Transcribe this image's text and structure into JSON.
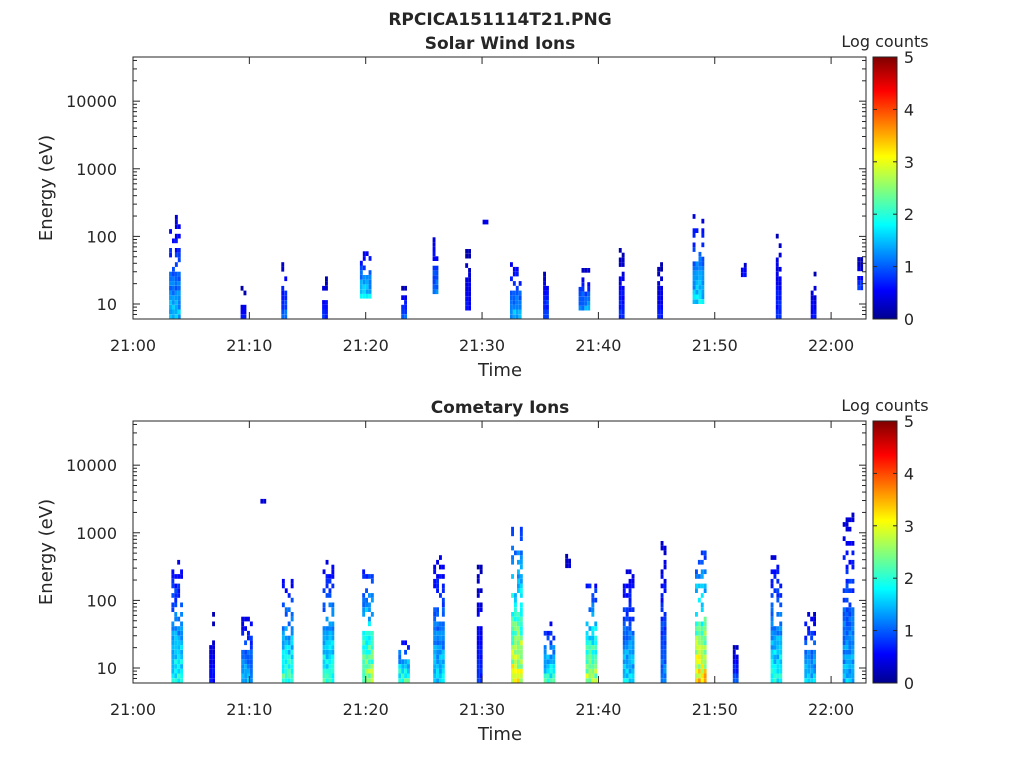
{
  "figure": {
    "title": "RPCICA151114T21.PNG"
  },
  "chart_data": [
    {
      "type": "heatmap",
      "title": "Solar Wind Ions",
      "xlabel": "Time",
      "ylabel": "Energy (eV)",
      "x_ticks": [
        "21:00",
        "21:10",
        "21:20",
        "21:30",
        "21:40",
        "21:50",
        "22:00"
      ],
      "x_range_minutes": [
        0,
        63
      ],
      "y_scale": "log",
      "y_ticks": [
        10,
        100,
        1000,
        10000
      ],
      "y_tick_labels": [
        "10",
        "100",
        "1000",
        "10000"
      ],
      "y_range": [
        6,
        45000
      ],
      "colorbar": {
        "label": "Log counts",
        "range": [
          0,
          5
        ],
        "ticks": [
          "0",
          "1",
          "2",
          "3",
          "4",
          "5"
        ],
        "colormap": "jet"
      },
      "events": [
        {
          "t": 3.6,
          "emin": 6,
          "emax": 180,
          "peak": 1.8
        },
        {
          "t": 9.5,
          "emin": 6,
          "emax": 16,
          "peak": 0.8
        },
        {
          "t": 13.0,
          "emin": 6,
          "emax": 45,
          "peak": 1.3
        },
        {
          "t": 16.5,
          "emin": 6,
          "emax": 22,
          "peak": 1.0
        },
        {
          "t": 20.0,
          "emin": 12,
          "emax": 60,
          "peak": 2.0
        },
        {
          "t": 23.3,
          "emin": 6,
          "emax": 16,
          "peak": 1.2
        },
        {
          "t": 26.0,
          "emin": 14,
          "emax": 90,
          "peak": 1.5
        },
        {
          "t": 28.8,
          "emin": 8,
          "emax": 70,
          "peak": 0.8
        },
        {
          "t": 30.3,
          "emin": 150,
          "emax": 160,
          "peak": 0.6
        },
        {
          "t": 32.9,
          "emin": 6,
          "emax": 40,
          "peak": 1.8
        },
        {
          "t": 35.5,
          "emin": 6,
          "emax": 30,
          "peak": 1.2
        },
        {
          "t": 38.8,
          "emin": 8,
          "emax": 30,
          "peak": 1.6
        },
        {
          "t": 42.0,
          "emin": 6,
          "emax": 60,
          "peak": 1.0
        },
        {
          "t": 45.3,
          "emin": 6,
          "emax": 40,
          "peak": 0.8
        },
        {
          "t": 48.6,
          "emin": 10,
          "emax": 200,
          "peak": 2.0
        },
        {
          "t": 52.5,
          "emin": 25,
          "emax": 45,
          "peak": 0.8
        },
        {
          "t": 55.5,
          "emin": 6,
          "emax": 130,
          "peak": 1.0
        },
        {
          "t": 58.5,
          "emin": 6,
          "emax": 30,
          "peak": 0.8
        },
        {
          "t": 62.5,
          "emin": 16,
          "emax": 45,
          "peak": 1.0
        }
      ]
    },
    {
      "type": "heatmap",
      "title": "Cometary Ions",
      "xlabel": "Time",
      "ylabel": "Energy (eV)",
      "x_ticks": [
        "21:00",
        "21:10",
        "21:20",
        "21:30",
        "21:40",
        "21:50",
        "22:00"
      ],
      "x_range_minutes": [
        0,
        63
      ],
      "y_scale": "log",
      "y_ticks": [
        10,
        100,
        1000,
        10000
      ],
      "y_tick_labels": [
        "10",
        "100",
        "1000",
        "10000"
      ],
      "y_range": [
        6,
        45000
      ],
      "colorbar": {
        "label": "Log counts",
        "range": [
          0,
          5
        ],
        "ticks": [
          "0",
          "1",
          "2",
          "3",
          "4",
          "5"
        ],
        "colormap": "jet"
      },
      "events": [
        {
          "t": 3.8,
          "emin": 6,
          "emax": 350,
          "peak": 2.3
        },
        {
          "t": 6.8,
          "emin": 6,
          "emax": 70,
          "peak": 0.8
        },
        {
          "t": 9.8,
          "emin": 6,
          "emax": 60,
          "peak": 1.8
        },
        {
          "t": 11.2,
          "emin": 2700,
          "emax": 2900,
          "peak": 0.5
        },
        {
          "t": 13.3,
          "emin": 6,
          "emax": 180,
          "peak": 2.6
        },
        {
          "t": 16.8,
          "emin": 6,
          "emax": 350,
          "peak": 2.4
        },
        {
          "t": 20.2,
          "emin": 6,
          "emax": 280,
          "peak": 3.2
        },
        {
          "t": 23.3,
          "emin": 6,
          "emax": 25,
          "peak": 2.6
        },
        {
          "t": 26.3,
          "emin": 6,
          "emax": 450,
          "peak": 2.0
        },
        {
          "t": 29.8,
          "emin": 6,
          "emax": 350,
          "peak": 1.0
        },
        {
          "t": 33.0,
          "emin": 6,
          "emax": 1200,
          "peak": 3.6
        },
        {
          "t": 35.8,
          "emin": 6,
          "emax": 45,
          "peak": 2.4
        },
        {
          "t": 37.4,
          "emin": 300,
          "emax": 500,
          "peak": 0.5
        },
        {
          "t": 39.4,
          "emin": 6,
          "emax": 160,
          "peak": 3.2
        },
        {
          "t": 42.6,
          "emin": 6,
          "emax": 250,
          "peak": 2.0
        },
        {
          "t": 45.6,
          "emin": 6,
          "emax": 750,
          "peak": 1.5
        },
        {
          "t": 48.8,
          "emin": 6,
          "emax": 500,
          "peak": 3.8
        },
        {
          "t": 51.8,
          "emin": 6,
          "emax": 20,
          "peak": 1.2
        },
        {
          "t": 55.3,
          "emin": 6,
          "emax": 400,
          "peak": 2.3
        },
        {
          "t": 58.2,
          "emin": 6,
          "emax": 60,
          "peak": 2.0
        },
        {
          "t": 61.5,
          "emin": 6,
          "emax": 1800,
          "peak": 1.8
        }
      ]
    }
  ]
}
